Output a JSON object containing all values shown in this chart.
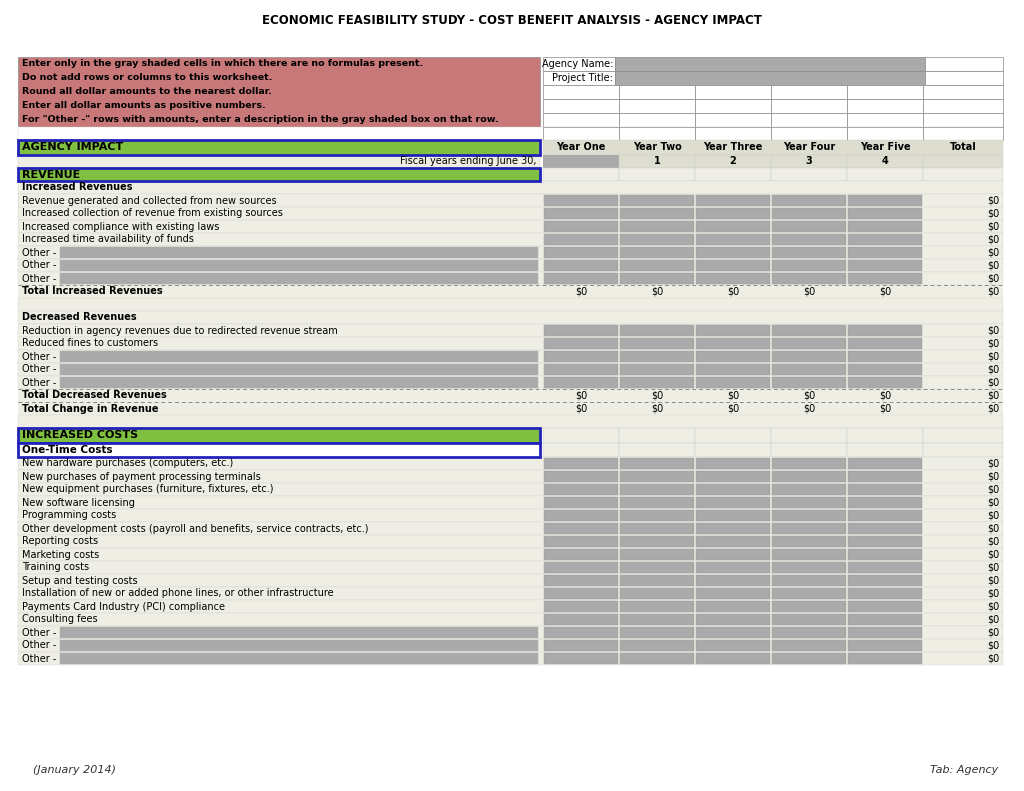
{
  "title": "ECONOMIC FEASIBILITY STUDY - COST BENEFIT ANALYSIS - AGENCY IMPACT",
  "page_bg": "#ffffff",
  "table_bg": "#eeeee4",
  "header_pink": "#c87878",
  "green_bar": "#80c040",
  "blue_border": "#2222bb",
  "gray_cell": "#aaaaaa",
  "col_header_bg": "#deded0",
  "instructions": [
    "Enter only in the gray shaded cells in which there are no formulas present.",
    "Do not add rows or columns to this worksheet.",
    "Round all dollar amounts to the nearest dollar.",
    "Enter all dollar amounts as positive numbers.",
    "For \"Other -\" rows with amounts, enter a description in the gray shaded box on that row."
  ],
  "col_headers": [
    "Year One",
    "Year Two",
    "Year Three",
    "Year Four",
    "Year Five"
  ],
  "col_sub": [
    "",
    "1",
    "2",
    "3",
    "4"
  ],
  "agency_label": "AGENCY IMPACT",
  "fiscal_label": "Fiscal years ending June 30,",
  "revenue_label": "REVENUE",
  "increased_costs_label": "INCREASED COSTS",
  "one_time_costs_label": "One-Time Costs",
  "sections": {
    "increased_revenues": {
      "header": "Increased Revenues",
      "rows": [
        "Revenue generated and collected from new sources",
        "Increased collection of revenue from existing sources",
        "Increased compliance with existing laws",
        "Increased time availability of funds",
        "Other -",
        "Other -",
        "Other -"
      ],
      "total_label": "Total Increased Revenues"
    },
    "decreased_revenues": {
      "header": "Decreased Revenues",
      "rows": [
        "Reduction in agency revenues due to redirected revenue stream",
        "Reduced fines to customers",
        "Other -",
        "Other -",
        "Other -"
      ],
      "total_label": "Total Decreased Revenues"
    },
    "total_change": "Total Change in Revenue",
    "one_time_costs": {
      "rows": [
        "New hardware purchases (computers, etc.)",
        "New purchases of payment processing terminals",
        "New equipment purchases (furniture, fixtures, etc.)",
        "New software licensing",
        "Programming costs",
        "Other development costs (payroll and benefits, service contracts, etc.)",
        "Reporting costs",
        "Marketing costs",
        "Training costs",
        "Setup and testing costs",
        "Installation of new or added phone lines, or other infrastructure",
        "Payments Card Industry (PCI) compliance",
        "Consulting fees",
        "Other -",
        "Other -",
        "Other -"
      ]
    }
  },
  "footer_left": "(January 2014)",
  "footer_right": "Tab: Agency"
}
